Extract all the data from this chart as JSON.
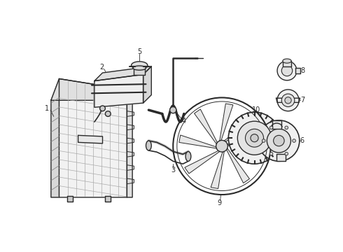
{
  "background_color": "#ffffff",
  "line_color": "#2a2a2a",
  "line_width": 1.0,
  "figsize": [
    4.9,
    3.6
  ],
  "dpi": 100
}
